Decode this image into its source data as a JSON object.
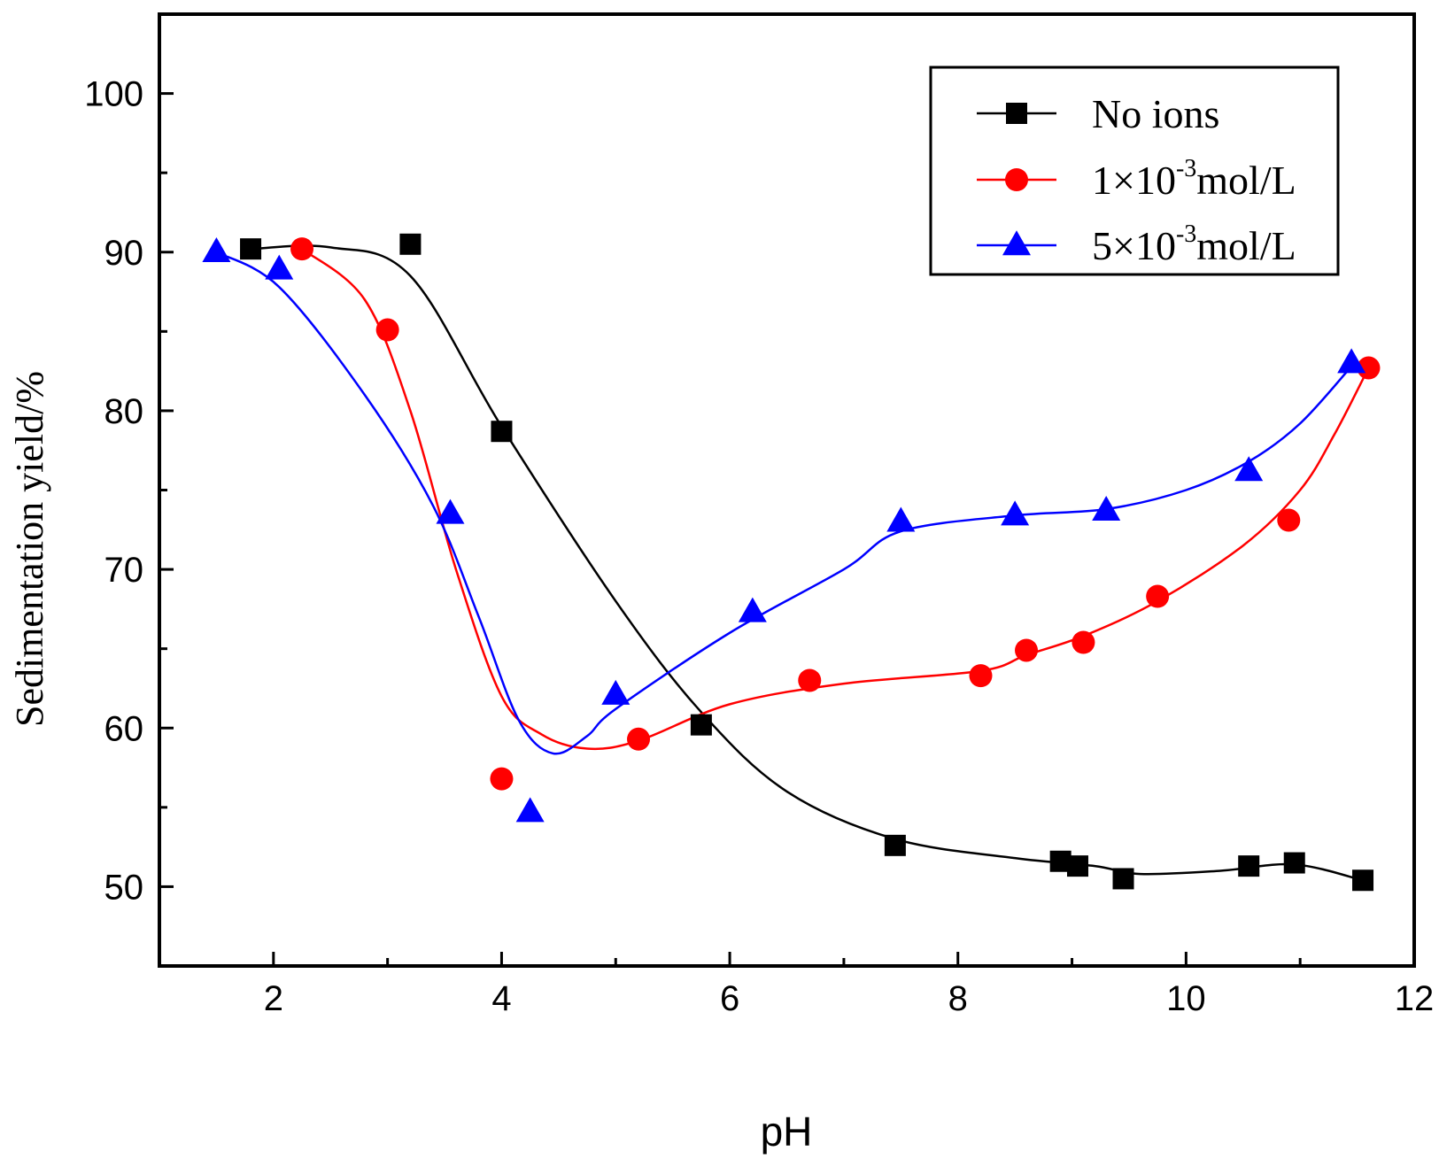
{
  "chart_data": {
    "type": "line",
    "title": "",
    "xlabel": "pH",
    "ylabel": "Sedimentation yield/%",
    "xlim": [
      1,
      12
    ],
    "ylim": [
      45,
      105
    ],
    "xticks": [
      2,
      4,
      6,
      8,
      10,
      12
    ],
    "yticks": [
      50,
      60,
      70,
      80,
      90,
      100
    ],
    "legend_position": "top-right",
    "series": [
      {
        "name": "No ions",
        "legend_parts": [
          "No ions",
          "",
          ""
        ],
        "color": "#000000",
        "marker": "square",
        "points": [
          [
            1.8,
            90.2
          ],
          [
            3.2,
            90.5
          ],
          [
            4.0,
            78.7
          ],
          [
            5.75,
            60.2
          ],
          [
            7.45,
            52.6
          ],
          [
            8.9,
            51.6
          ],
          [
            9.05,
            51.3
          ],
          [
            9.45,
            50.5
          ],
          [
            10.55,
            51.3
          ],
          [
            10.95,
            51.5
          ],
          [
            11.55,
            50.4
          ]
        ],
        "fit": [
          [
            1.8,
            90.2
          ],
          [
            2.5,
            90.3
          ],
          [
            3.2,
            88.5
          ],
          [
            4.0,
            79.0
          ],
          [
            5.0,
            68.0
          ],
          [
            5.75,
            61.0
          ],
          [
            6.5,
            56.0
          ],
          [
            7.45,
            53.0
          ],
          [
            8.5,
            51.8
          ],
          [
            9.2,
            51.3
          ],
          [
            9.6,
            50.8
          ],
          [
            10.3,
            51.0
          ],
          [
            10.95,
            51.4
          ],
          [
            11.55,
            50.4
          ]
        ]
      },
      {
        "name": "1×10-3mol/L",
        "legend_parts": [
          "1×10",
          "-3",
          "mol/L"
        ],
        "color": "#ff0000",
        "marker": "circle",
        "points": [
          [
            2.25,
            90.2
          ],
          [
            3.0,
            85.1
          ],
          [
            4.0,
            56.8
          ],
          [
            5.2,
            59.3
          ],
          [
            6.7,
            63.0
          ],
          [
            8.2,
            63.3
          ],
          [
            8.6,
            64.9
          ],
          [
            9.1,
            65.4
          ],
          [
            9.75,
            68.3
          ],
          [
            10.9,
            73.1
          ],
          [
            11.6,
            82.7
          ]
        ],
        "fit": [
          [
            2.25,
            90.2
          ],
          [
            2.8,
            87.0
          ],
          [
            3.2,
            80.0
          ],
          [
            3.6,
            70.0
          ],
          [
            4.0,
            62.0
          ],
          [
            4.35,
            59.6
          ],
          [
            4.75,
            58.7
          ],
          [
            5.2,
            59.2
          ],
          [
            6.0,
            61.5
          ],
          [
            7.0,
            62.8
          ],
          [
            8.2,
            63.6
          ],
          [
            8.6,
            64.6
          ],
          [
            9.1,
            65.8
          ],
          [
            9.75,
            68.0
          ],
          [
            10.5,
            71.5
          ],
          [
            11.0,
            75.0
          ],
          [
            11.3,
            78.5
          ],
          [
            11.6,
            82.7
          ]
        ]
      },
      {
        "name": "5×10-3mol/L",
        "legend_parts": [
          "5×10",
          "-3",
          "mol/L"
        ],
        "color": "#0000ff",
        "marker": "triangle",
        "points": [
          [
            1.5,
            90.0
          ],
          [
            2.05,
            88.9
          ],
          [
            3.55,
            73.5
          ],
          [
            4.25,
            54.7
          ],
          [
            5.0,
            62.1
          ],
          [
            6.2,
            67.3
          ],
          [
            7.5,
            73.0
          ],
          [
            8.5,
            73.4
          ],
          [
            9.3,
            73.7
          ],
          [
            10.55,
            76.2
          ],
          [
            11.45,
            83.0
          ]
        ],
        "fit": [
          [
            1.5,
            90.0
          ],
          [
            2.05,
            87.8
          ],
          [
            2.8,
            81.0
          ],
          [
            3.4,
            74.0
          ],
          [
            3.8,
            67.0
          ],
          [
            4.15,
            60.5
          ],
          [
            4.45,
            58.4
          ],
          [
            4.75,
            59.5
          ],
          [
            5.0,
            61.2
          ],
          [
            6.0,
            66.0
          ],
          [
            7.0,
            70.0
          ],
          [
            7.5,
            72.4
          ],
          [
            8.5,
            73.4
          ],
          [
            9.3,
            73.8
          ],
          [
            10.0,
            75.0
          ],
          [
            10.55,
            76.8
          ],
          [
            11.0,
            79.2
          ],
          [
            11.45,
            82.8
          ]
        ]
      }
    ]
  }
}
